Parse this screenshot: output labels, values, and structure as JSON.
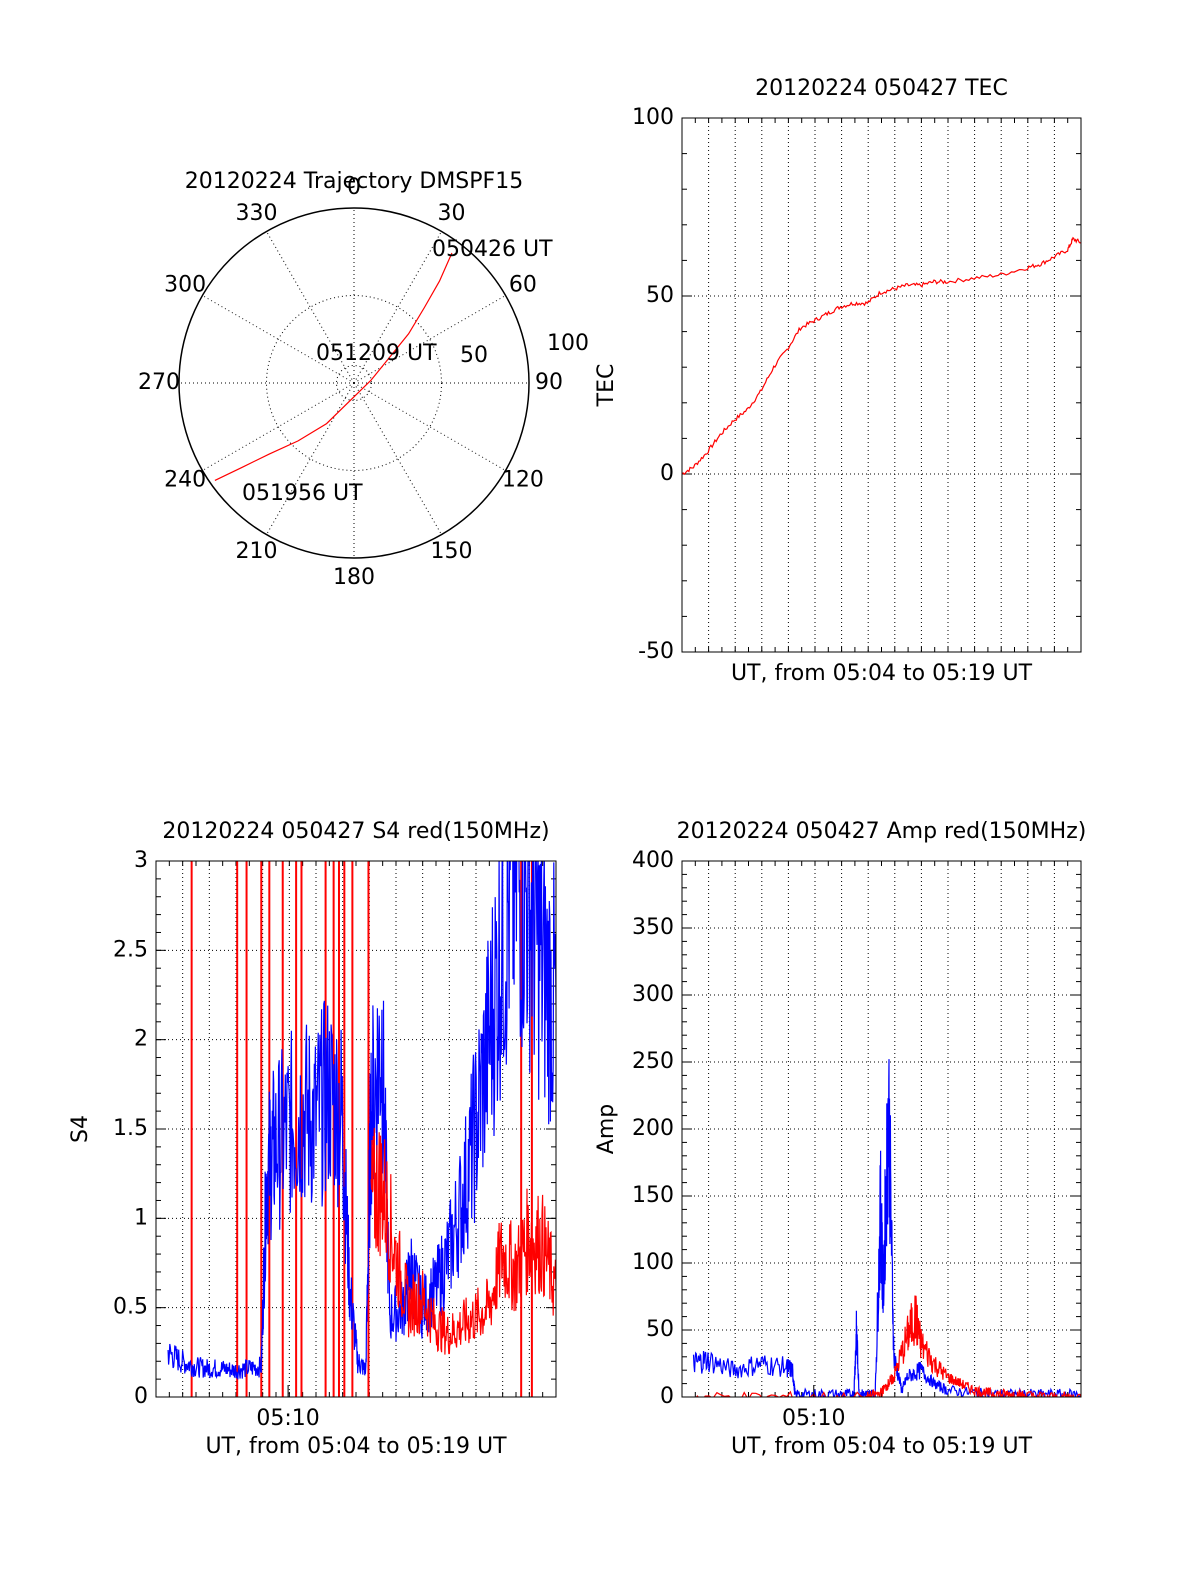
{
  "colors": {
    "red": "#ff0000",
    "blue": "#0000ff",
    "axis": "#000000",
    "grid": "#000000",
    "background": "#ffffff"
  },
  "chart_data": [
    {
      "id": "trajectory",
      "type": "polar",
      "title": "20120224 Trajectory DMSPF15",
      "angle_labels": [
        "0",
        "30",
        "60",
        "90",
        "120",
        "150",
        "180",
        "210",
        "240",
        "270",
        "300",
        "330"
      ],
      "radial_labels": [
        "50",
        "100"
      ],
      "rlim": [
        0,
        100
      ],
      "annotations": [
        "050426 UT",
        "051209 UT",
        "051956 UT"
      ],
      "series": [
        {
          "color": "#ff0000",
          "points": [
            [
              37,
              93
            ],
            [
              40,
              76
            ],
            [
              43,
              59
            ],
            [
              48,
              42
            ],
            [
              80,
              10
            ],
            [
              214,
              28
            ],
            [
              224,
              46
            ],
            [
              230,
              63
            ],
            [
              233,
              80
            ],
            [
              235,
              97
            ]
          ]
        }
      ],
      "grid": true
    },
    {
      "id": "tec",
      "type": "line",
      "title": "20120224 050427 TEC",
      "xlabel": "UT, from 05:04 to 05:19 UT",
      "ylabel": "TEC",
      "ylim": [
        -50,
        100
      ],
      "yticks": [
        "-50",
        "0",
        "50",
        "100"
      ],
      "xlim": [
        5.07,
        20.0
      ],
      "series": [
        {
          "color": "#ff0000",
          "x": [
            5.07,
            5.5,
            6.0,
            6.5,
            7.0,
            7.5,
            8.0,
            8.5,
            9.0,
            9.5,
            10.0,
            10.5,
            11.0,
            11.5,
            12.0,
            12.5,
            13.0,
            13.5,
            14.0,
            14.5,
            15.0,
            16.0,
            17.0,
            18.0,
            18.5,
            19.0,
            19.5,
            19.7,
            20.0
          ],
          "y": [
            0,
            2,
            6,
            11,
            15,
            18,
            23,
            30,
            35,
            41,
            43,
            45,
            47,
            48,
            48,
            51,
            52,
            53,
            53,
            54,
            54,
            55,
            56,
            58,
            59,
            61,
            63,
            66,
            65
          ]
        }
      ],
      "grid": true
    },
    {
      "id": "s4",
      "type": "line",
      "title": "20120224 050427 S4 red(150MHz)",
      "xlabel": "UT, from 05:04 to 05:19 UT",
      "ylabel": "S4",
      "ylim": [
        0,
        3
      ],
      "yticks": [
        "0",
        "0.5",
        "1",
        "1.5",
        "2",
        "2.5",
        "3"
      ],
      "xticks": [
        "05:10"
      ],
      "xlim": [
        5.07,
        20.0
      ],
      "spikes": {
        "color": "#ff0000",
        "x": [
          6.4,
          8.1,
          8.45,
          9.0,
          9.3,
          9.8,
          10.3,
          10.5,
          11.4,
          11.7,
          11.9,
          12.1,
          12.4,
          13.0,
          18.7,
          19.1
        ]
      },
      "series": [
        {
          "name": "",
          "color": "#0000ff",
          "x": [
            5.5,
            6.0,
            6.5,
            7.0,
            7.5,
            8.0,
            8.5,
            9.0,
            9.2,
            9.5,
            10.0,
            10.5,
            11.0,
            11.5,
            12.0,
            12.3,
            12.6,
            12.9,
            13.1,
            13.5,
            13.8,
            14.3,
            14.6,
            15.0,
            15.5,
            16.0,
            16.5,
            17.0,
            17.5,
            18.0,
            18.5,
            19.0,
            19.5,
            20.0
          ],
          "y": [
            0.25,
            0.2,
            0.17,
            0.16,
            0.16,
            0.15,
            0.16,
            0.17,
            1.25,
            1.4,
            1.5,
            1.6,
            1.55,
            1.7,
            1.6,
            0.6,
            0.2,
            0.15,
            1.6,
            2.0,
            0.45,
            0.5,
            0.7,
            0.5,
            0.6,
            0.8,
            1.1,
            1.5,
            2.0,
            2.6,
            2.9,
            2.8,
            2.4,
            2.2
          ]
        },
        {
          "name": "",
          "color": "#ff0000",
          "x": [
            13.1,
            13.5,
            14.0,
            14.5,
            15.0,
            15.5,
            16.0,
            16.5,
            17.0,
            17.5,
            18.0,
            18.5,
            19.0,
            19.5,
            20.0
          ],
          "y": [
            1.1,
            1.2,
            0.8,
            0.5,
            0.55,
            0.4,
            0.35,
            0.4,
            0.45,
            0.5,
            0.8,
            0.7,
            0.9,
            0.85,
            0.6
          ]
        }
      ],
      "grid": true
    },
    {
      "id": "amp",
      "type": "line",
      "title": "20120224 050427 Amp red(150MHz)",
      "xlabel": "UT, from 05:04 to 05:19 UT",
      "ylabel": "Amp",
      "ylim": [
        0,
        400
      ],
      "yticks": [
        "0",
        "50",
        "100",
        "150",
        "200",
        "250",
        "300",
        "350",
        "400"
      ],
      "xticks": [
        "05:10"
      ],
      "xlim": [
        5.07,
        20.0
      ],
      "series": [
        {
          "name": "",
          "color": "#0000ff",
          "x": [
            5.5,
            6.0,
            7.0,
            8.0,
            9.0,
            9.2,
            9.3,
            10.0,
            11.0,
            11.5,
            11.6,
            11.7,
            12.0,
            12.3,
            12.5,
            12.6,
            12.8,
            13.0,
            13.3,
            13.5,
            14.0,
            14.5,
            15.0,
            16.0,
            17.0,
            18.0,
            19.0,
            20.0
          ],
          "y": [
            25,
            28,
            20,
            25,
            22,
            20,
            2,
            2,
            2,
            2,
            50,
            2,
            2,
            2,
            140,
            80,
            220,
            30,
            5,
            15,
            20,
            10,
            5,
            3,
            2,
            2,
            2,
            2
          ]
        },
        {
          "name": "",
          "color": "#ff0000",
          "x": [
            5.5,
            9.0,
            12.0,
            12.5,
            12.8,
            13.0,
            13.5,
            13.8,
            14.0,
            14.5,
            15.0,
            15.5,
            16.0,
            16.5,
            17.0,
            17.5,
            18.0,
            19.0,
            20.0
          ],
          "y": [
            0,
            0,
            0,
            3,
            10,
            15,
            45,
            60,
            40,
            25,
            15,
            10,
            5,
            3,
            2,
            2,
            1,
            0,
            0
          ]
        }
      ],
      "grid": true
    }
  ]
}
